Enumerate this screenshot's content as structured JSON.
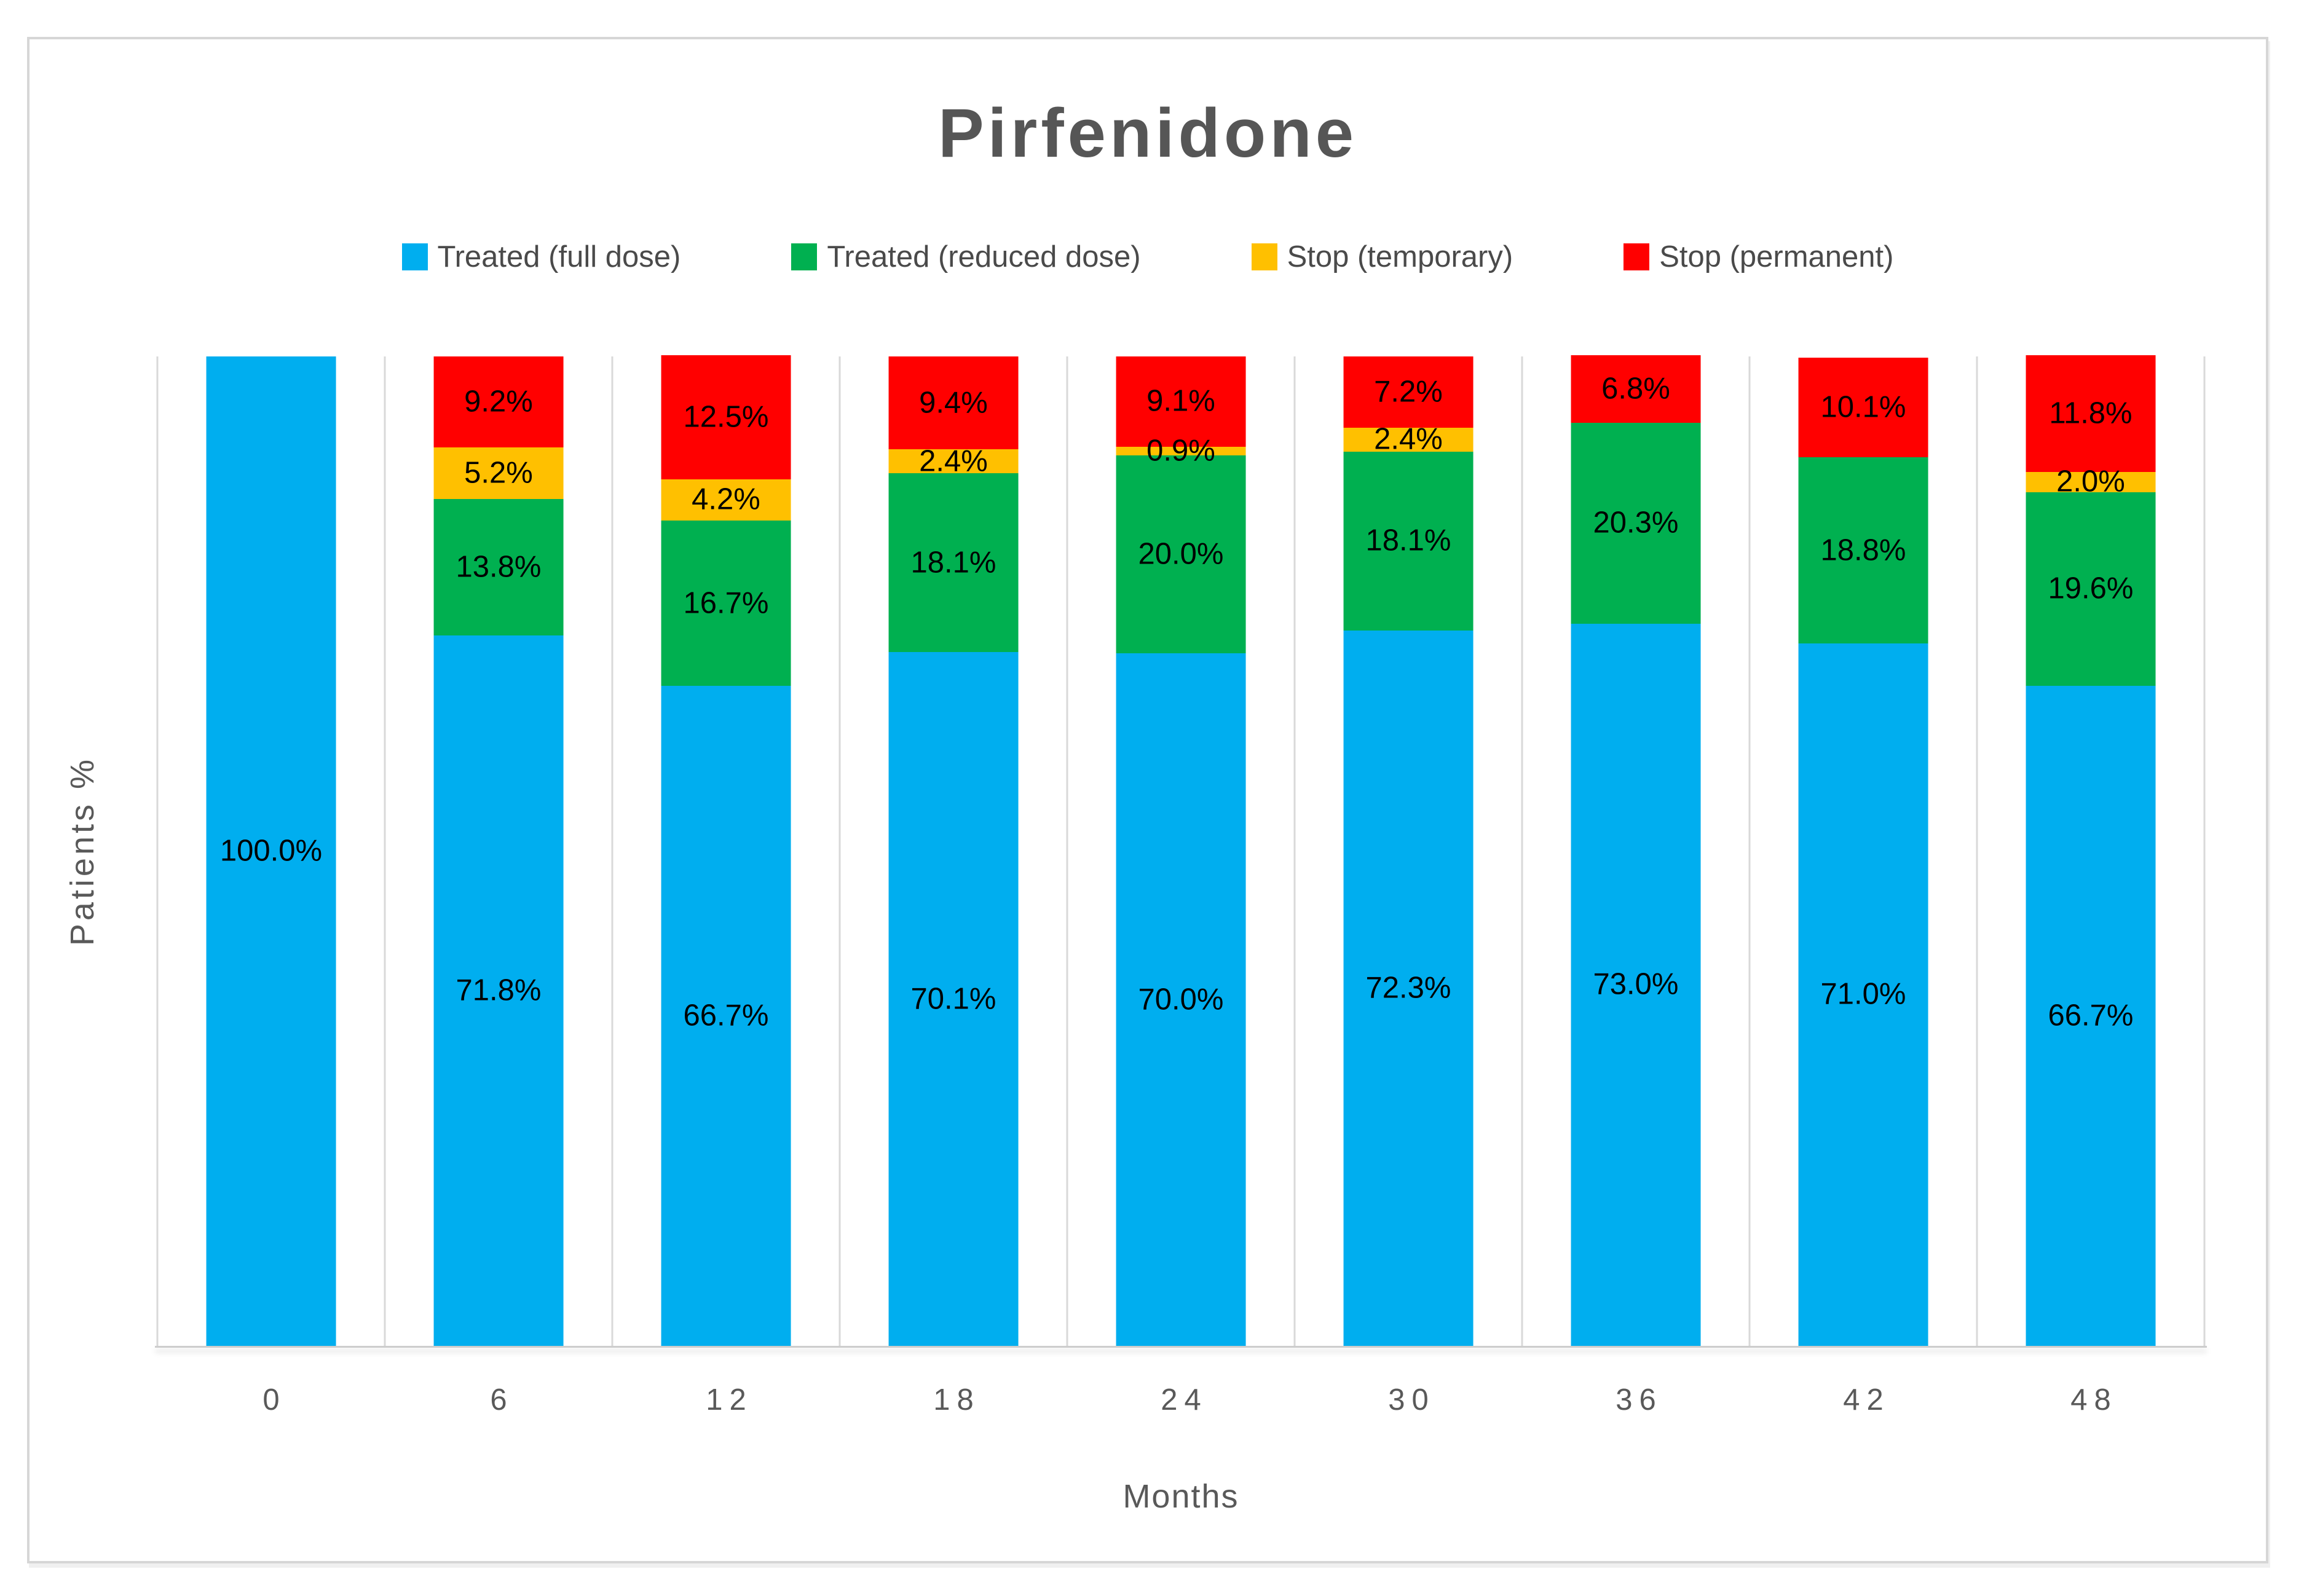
{
  "chart_data": {
    "type": "bar",
    "stacked": true,
    "title": "Pirfenidone",
    "xlabel": "Months",
    "ylabel": "Patients %",
    "ylim": [
      0,
      100
    ],
    "grid": "vertical-category-boundaries",
    "legend_position": "top",
    "data_label_format": "one_decimal_percent",
    "categories": [
      "0",
      "6",
      "12",
      "18",
      "24",
      "30",
      "36",
      "42",
      "48"
    ],
    "series": [
      {
        "name": "Treated (full dose)",
        "color": "#00AEEF",
        "values": [
          100.0,
          71.8,
          66.7,
          70.1,
          70.0,
          72.3,
          73.0,
          71.0,
          66.7
        ]
      },
      {
        "name": "Treated (reduced dose)",
        "color": "#00B050",
        "values": [
          0,
          13.8,
          16.7,
          18.1,
          20.0,
          18.1,
          20.3,
          18.8,
          19.6
        ]
      },
      {
        "name": "Stop (temporary)",
        "color": "#FFC000",
        "values": [
          0,
          5.2,
          4.2,
          2.4,
          0.9,
          2.4,
          0,
          0,
          2.0
        ]
      },
      {
        "name": "Stop (permanent)",
        "color": "#FF0000",
        "values": [
          0,
          9.2,
          12.5,
          9.4,
          9.1,
          7.2,
          6.8,
          10.1,
          11.8
        ]
      }
    ],
    "colors": {
      "gridline": "#d9d9d9",
      "axis_line": "#cdcdcd",
      "text_gray": "#595959",
      "title_gray": "#565656",
      "data_label": "#000000"
    }
  }
}
